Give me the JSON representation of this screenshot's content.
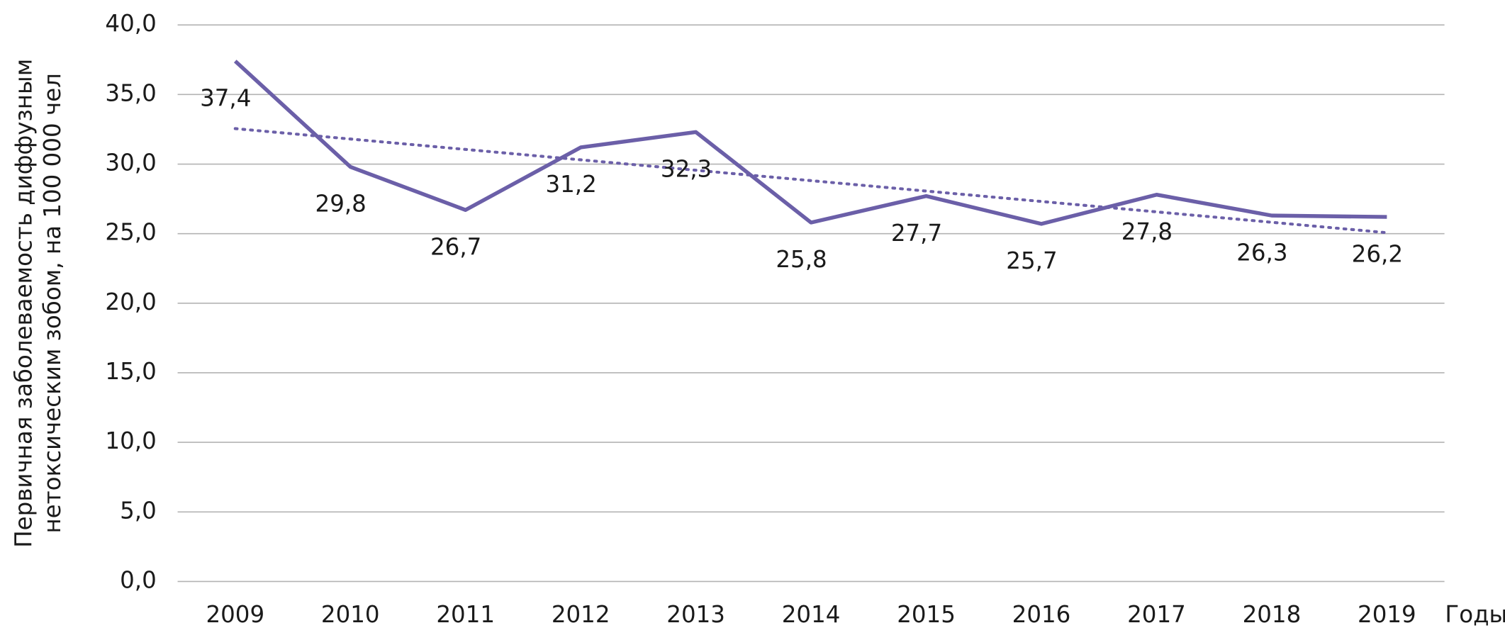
{
  "chart_data": {
    "type": "line",
    "ylabel": [
      "Первичная заболеваемость диффузным",
      "нетоксическим зобом, на 100 000 чел"
    ],
    "xlabel": "Годы",
    "categories": [
      "2009",
      "2010",
      "2011",
      "2012",
      "2013",
      "2014",
      "2015",
      "2016",
      "2017",
      "2018",
      "2019"
    ],
    "series": [
      {
        "color": "#6b5fa8",
        "values": [
          37.4,
          29.8,
          26.7,
          31.2,
          32.3,
          25.8,
          27.7,
          25.7,
          27.8,
          26.3,
          26.2
        ],
        "value_labels": [
          "37,4",
          "29,8",
          "26,7",
          "31,2",
          "32,3",
          "25,8",
          "27,7",
          "25,7",
          "27,8",
          "26,3",
          "26,2"
        ],
        "trendline": true
      }
    ],
    "ylim": [
      0,
      40
    ],
    "yticks": [
      {
        "value": 0,
        "label": "0,0"
      },
      {
        "value": 5,
        "label": "5,0"
      },
      {
        "value": 10,
        "label": "10,0"
      },
      {
        "value": 15,
        "label": "15,0"
      },
      {
        "value": 20,
        "label": "20,0"
      },
      {
        "value": 25,
        "label": "25,0"
      },
      {
        "value": 30,
        "label": "30,0"
      },
      {
        "value": 35,
        "label": "35,0"
      },
      {
        "value": 40,
        "label": "40,0"
      }
    ],
    "grid": true
  }
}
